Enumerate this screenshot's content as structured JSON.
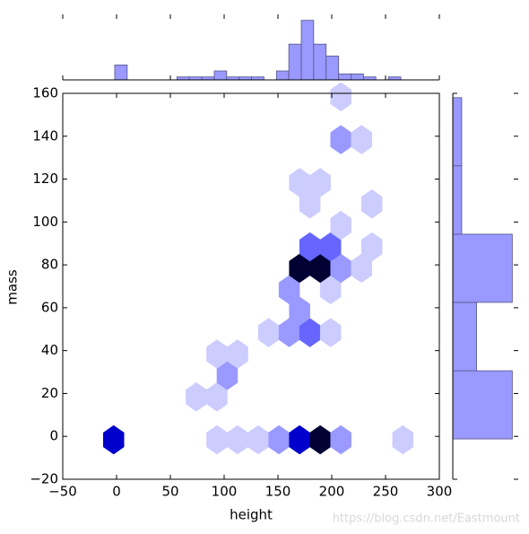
{
  "chart_data": [
    {
      "type": "hexbin",
      "x_label": "height",
      "y_label": "mass",
      "xlim": [
        -50,
        300
      ],
      "ylim": [
        -20,
        160
      ],
      "xticks": [
        {
          "value": -50,
          "label": "−50"
        },
        0,
        50,
        100,
        150,
        200,
        250,
        300
      ],
      "yticks": [
        {
          "value": -20,
          "label": "−20"
        },
        0,
        20,
        40,
        60,
        80,
        100,
        120,
        140,
        160
      ],
      "x": [
        -2.7,
        93.3,
        112.5,
        131.7,
        150.9,
        170.1,
        189.3,
        208.5,
        266.1,
        74.1,
        93.3,
        102.9,
        93.3,
        112.5,
        141.3,
        160.5,
        179.7,
        198.9,
        170.1,
        160.5,
        198.9,
        170.1,
        189.3,
        208.5,
        227.7,
        179.7,
        198.9,
        237.3,
        208.5,
        179.7,
        237.3,
        170.1,
        189.3,
        208.5,
        227.7,
        208.5
      ],
      "y": [
        -1.6,
        -1.6,
        -1.6,
        -1.6,
        -1.6,
        -1.6,
        -1.6,
        -1.6,
        -1.6,
        18.4,
        18.4,
        28.4,
        38.4,
        38.4,
        48.4,
        48.4,
        48.4,
        48.4,
        58.4,
        68.4,
        68.4,
        78.4,
        78.4,
        78.4,
        78.4,
        88.4,
        88.4,
        88.4,
        98.4,
        108.4,
        108.4,
        118.4,
        118.4,
        138.4,
        138.4,
        158.4
      ],
      "colors": [
        "#0000cc",
        "#ccccff",
        "#ccccff",
        "#ccccff",
        "#9999ff",
        "#0000cc",
        "#000033",
        "#9999ff",
        "#ccccff",
        "#ccccff",
        "#ccccff",
        "#9999ff",
        "#ccccff",
        "#ccccff",
        "#ccccff",
        "#9999ff",
        "#6666ff",
        "#ccccff",
        "#9999ff",
        "#9999ff",
        "#ccccff",
        "#000033",
        "#000033",
        "#9999ff",
        "#ccccff",
        "#6666ff",
        "#6666ff",
        "#ccccff",
        "#ccccff",
        "#ccccff",
        "#ccccff",
        "#ccccff",
        "#ccccff",
        "#9999ff",
        "#ccccff",
        "#ccccff"
      ]
    },
    {
      "type": "histogram",
      "orientation": "vertical",
      "color": "#9999ff",
      "xlim": [
        -50,
        300
      ],
      "ylim": [
        0,
        22
      ],
      "bins": [
        -1.7,
        9.9,
        21.4,
        33.0,
        44.5,
        56.1,
        67.6,
        79.2,
        90.8,
        102.3,
        113.9,
        125.4,
        137.0,
        148.6,
        160.1,
        171.7,
        183.2,
        194.8,
        206.4,
        217.9,
        229.5,
        241.0,
        252.6,
        264.2
      ],
      "counts": [
        5,
        0,
        0,
        0,
        0,
        1,
        1,
        1,
        3,
        1,
        1,
        1,
        0,
        3,
        12,
        20,
        12,
        8,
        2,
        2,
        1,
        0,
        1
      ]
    },
    {
      "type": "histogram",
      "orientation": "horizontal",
      "color": "#9999ff",
      "ylim": [
        -20,
        160
      ],
      "xlim": [
        0,
        22
      ],
      "bins": [
        -1.2,
        30.6,
        62.5,
        94.3,
        126.2,
        158.0
      ],
      "counts": [
        20,
        8,
        20,
        3,
        3
      ]
    }
  ],
  "watermark": "https://blog.csdn.net/Eastmount"
}
